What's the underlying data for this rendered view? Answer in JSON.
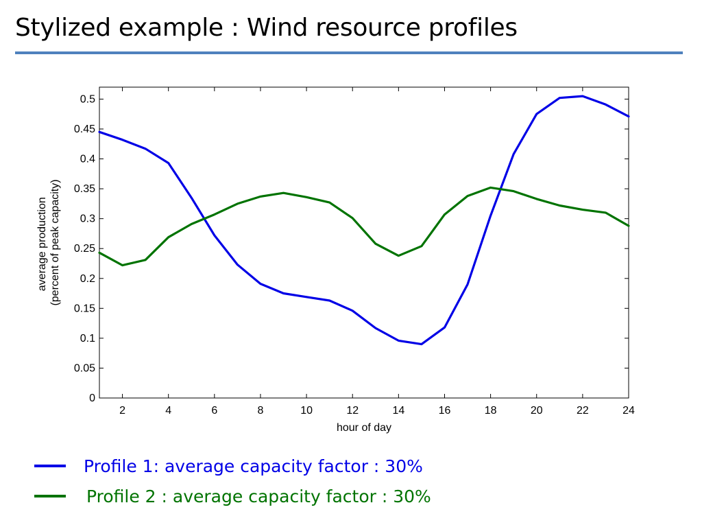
{
  "slide": {
    "title": "Stylized example : Wind resource profiles"
  },
  "legend": [
    {
      "label": "Profile 1:  average capacity factor : 30%",
      "color": "#0000e6"
    },
    {
      "label": "Profile 2 : average capacity factor : 30%",
      "color": "#007300"
    }
  ],
  "colors": {
    "title_rule": "#4f81bd"
  },
  "chart_data": {
    "type": "line",
    "title": "",
    "xlabel": "hour of day",
    "ylabel": [
      "average production",
      "(percent of peak capacity)"
    ],
    "xlim": [
      1,
      24
    ],
    "ylim": [
      0,
      0.5
    ],
    "x_ticks": [
      2,
      4,
      6,
      8,
      10,
      12,
      14,
      16,
      18,
      20,
      22,
      24
    ],
    "x_tick_labels": [
      "2",
      "4",
      "6",
      "8",
      "10",
      "12",
      "14",
      "16",
      "18",
      "20",
      "22",
      "24"
    ],
    "y_ticks": [
      0,
      0.05,
      0.1,
      0.15,
      0.2,
      0.25,
      0.3,
      0.35,
      0.4,
      0.45,
      0.5
    ],
    "y_tick_labels": [
      "0",
      "0.05",
      "0.1",
      "0.15",
      "0.2",
      "0.25",
      "0.3",
      "0.35",
      "0.4",
      "0.45",
      "0.5"
    ],
    "grid": false,
    "x": [
      1,
      2,
      3,
      4,
      5,
      6,
      7,
      8,
      9,
      10,
      11,
      12,
      13,
      14,
      15,
      16,
      17,
      18,
      19,
      20,
      21,
      22,
      23,
      24
    ],
    "series": [
      {
        "color": "#0000e6",
        "values": [
          0.445,
          0.432,
          0.417,
          0.393,
          0.335,
          0.272,
          0.223,
          0.191,
          0.175,
          0.169,
          0.163,
          0.146,
          0.117,
          0.096,
          0.09,
          0.118,
          0.19,
          0.305,
          0.408,
          0.475,
          0.502,
          0.505,
          0.491,
          0.471
        ]
      },
      {
        "color": "#007300",
        "values": [
          0.243,
          0.222,
          0.231,
          0.269,
          0.291,
          0.307,
          0.325,
          0.337,
          0.343,
          0.336,
          0.327,
          0.301,
          0.258,
          0.238,
          0.254,
          0.307,
          0.338,
          0.352,
          0.346,
          0.333,
          0.322,
          0.315,
          0.31,
          0.288
        ]
      }
    ]
  }
}
